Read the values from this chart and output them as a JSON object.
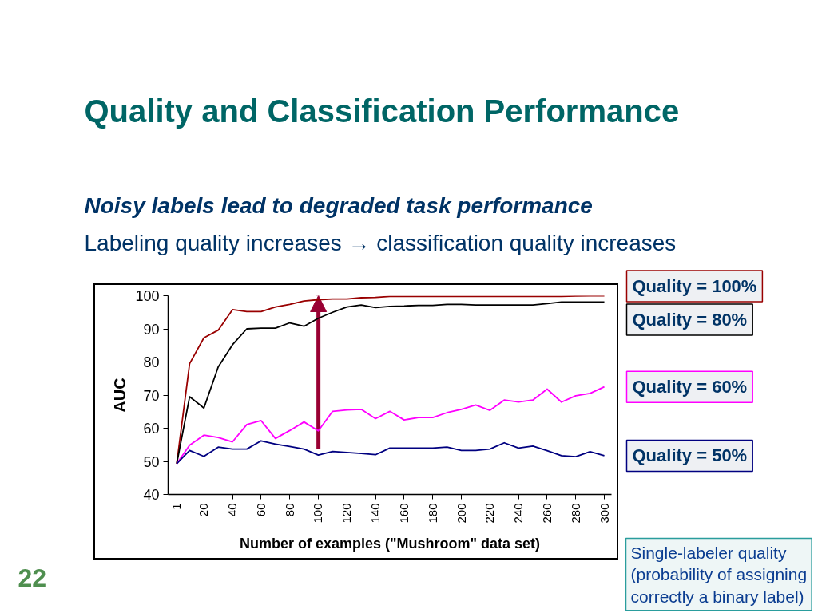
{
  "chart_data": {
    "type": "line",
    "title": "Quality and Classification Performance",
    "subtitle": "Noisy labels lead to degraded task performance",
    "xlabel": "Number of examples (\"Mushroom\" data set)",
    "ylabel": "AUC",
    "x": [
      1,
      10,
      20,
      30,
      40,
      50,
      60,
      70,
      80,
      90,
      100,
      110,
      120,
      130,
      140,
      150,
      160,
      170,
      180,
      190,
      200,
      210,
      220,
      230,
      240,
      250,
      260,
      270,
      280,
      290,
      300
    ],
    "xlim": [
      -5,
      305
    ],
    "xticks": [
      1,
      20,
      40,
      60,
      80,
      100,
      120,
      140,
      160,
      180,
      200,
      220,
      240,
      260,
      280,
      300
    ],
    "ylim": [
      40,
      100
    ],
    "yticks": [
      40,
      50,
      60,
      70,
      80,
      90,
      100
    ],
    "grid": false,
    "series": [
      {
        "name": "Quality = 100%",
        "color": "#990000",
        "values": [
          49.3,
          79.5,
          87.3,
          89.6,
          95.8,
          95.2,
          95.2,
          96.6,
          97.4,
          98.4,
          98.8,
          99.0,
          99.0,
          99.4,
          99.5,
          99.8,
          99.8,
          99.8,
          99.8,
          99.8,
          99.8,
          99.8,
          99.8,
          99.8,
          99.8,
          99.8,
          99.8,
          99.8,
          99.9,
          100,
          100
        ]
      },
      {
        "name": "Quality = 80%",
        "color": "#000000",
        "values": [
          49.3,
          69.5,
          66.1,
          78.5,
          85.2,
          90.0,
          90.2,
          90.2,
          91.8,
          90.8,
          93.2,
          95.0,
          96.6,
          97.2,
          96.4,
          96.8,
          96.9,
          97.1,
          97.1,
          97.4,
          97.4,
          97.2,
          97.2,
          97.2,
          97.2,
          97.2,
          97.6,
          98.1,
          98.1,
          98.1,
          98.1
        ]
      },
      {
        "name": "Quality = 60%",
        "color": "#ff00ff",
        "values": [
          49.3,
          54.9,
          57.9,
          57.2,
          55.9,
          61.1,
          62.3,
          56.9,
          59.3,
          61.9,
          59.2,
          65.1,
          65.5,
          65.7,
          62.9,
          65.1,
          62.5,
          63.2,
          63.2,
          64.7,
          65.7,
          67.0,
          65.4,
          68.5,
          67.9,
          68.5,
          71.8,
          67.9,
          69.8,
          70.5,
          72.5
        ]
      },
      {
        "name": "Quality = 50%",
        "color": "#000080",
        "values": [
          49.3,
          53.3,
          51.5,
          54.3,
          53.7,
          53.7,
          56.2,
          55.2,
          54.5,
          53.7,
          51.9,
          53.0,
          52.7,
          52.4,
          52.0,
          54.0,
          54.0,
          54.0,
          54.0,
          54.3,
          53.3,
          53.3,
          53.7,
          55.6,
          54.0,
          54.6,
          53.2,
          51.7,
          51.4,
          52.9,
          51.7
        ]
      }
    ],
    "annotations": [
      "Labeling quality increases → classification quality increases",
      "Single-labeler quality (probability of assigning correctly a binary label)",
      "22"
    ]
  }
}
